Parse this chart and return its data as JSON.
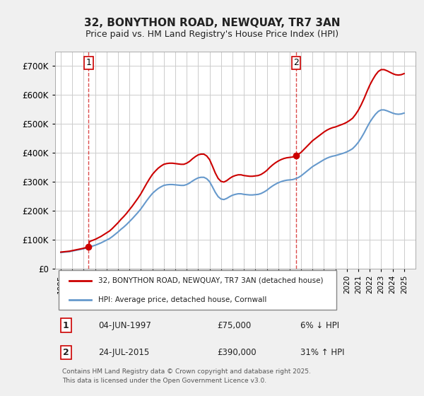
{
  "title_line1": "32, BONYTHON ROAD, NEWQUAY, TR7 3AN",
  "title_line2": "Price paid vs. HM Land Registry's House Price Index (HPI)",
  "ylabel": "",
  "xlabel": "",
  "background_color": "#f0f0f0",
  "plot_bg_color": "#ffffff",
  "grid_color": "#cccccc",
  "line1_color": "#cc0000",
  "line2_color": "#6699cc",
  "marker_color": "#cc0000",
  "dashed_line_color": "#cc0000",
  "ylim": [
    0,
    750000
  ],
  "yticks": [
    0,
    100000,
    200000,
    300000,
    400000,
    500000,
    600000,
    700000
  ],
  "ytick_labels": [
    "£0",
    "£100K",
    "£200K",
    "£300K",
    "£400K",
    "£500K",
    "£600K",
    "£700K"
  ],
  "xlim_start": 1994.5,
  "xlim_end": 2026.0,
  "xtick_years": [
    1995,
    1996,
    1997,
    1998,
    1999,
    2000,
    2001,
    2002,
    2003,
    2004,
    2005,
    2006,
    2007,
    2008,
    2009,
    2010,
    2011,
    2012,
    2013,
    2014,
    2015,
    2016,
    2017,
    2018,
    2019,
    2020,
    2021,
    2022,
    2023,
    2024,
    2025
  ],
  "sale1_x": 1997.43,
  "sale1_y": 75000,
  "sale2_x": 2015.56,
  "sale2_y": 390000,
  "legend_line1": "32, BONYTHON ROAD, NEWQUAY, TR7 3AN (detached house)",
  "legend_line2": "HPI: Average price, detached house, Cornwall",
  "annotation1_label": "1",
  "annotation2_label": "2",
  "table_row1": [
    "1",
    "04-JUN-1997",
    "£75,000",
    "6% ↓ HPI"
  ],
  "table_row2": [
    "2",
    "24-JUL-2015",
    "£390,000",
    "31% ↑ HPI"
  ],
  "footer": "Contains HM Land Registry data © Crown copyright and database right 2025.\nThis data is licensed under the Open Government Licence v3.0.",
  "hpi_data_x": [
    1995,
    1995.25,
    1995.5,
    1995.75,
    1996,
    1996.25,
    1996.5,
    1996.75,
    1997,
    1997.25,
    1997.5,
    1997.75,
    1998,
    1998.25,
    1998.5,
    1998.75,
    1999,
    1999.25,
    1999.5,
    1999.75,
    2000,
    2000.25,
    2000.5,
    2000.75,
    2001,
    2001.25,
    2001.5,
    2001.75,
    2002,
    2002.25,
    2002.5,
    2002.75,
    2003,
    2003.25,
    2003.5,
    2003.75,
    2004,
    2004.25,
    2004.5,
    2004.75,
    2005,
    2005.25,
    2005.5,
    2005.75,
    2006,
    2006.25,
    2006.5,
    2006.75,
    2007,
    2007.25,
    2007.5,
    2007.75,
    2008,
    2008.25,
    2008.5,
    2008.75,
    2009,
    2009.25,
    2009.5,
    2009.75,
    2010,
    2010.25,
    2010.5,
    2010.75,
    2011,
    2011.25,
    2011.5,
    2011.75,
    2012,
    2012.25,
    2012.5,
    2012.75,
    2013,
    2013.25,
    2013.5,
    2013.75,
    2014,
    2014.25,
    2014.5,
    2014.75,
    2015,
    2015.25,
    2015.5,
    2015.75,
    2016,
    2016.25,
    2016.5,
    2016.75,
    2017,
    2017.25,
    2017.5,
    2017.75,
    2018,
    2018.25,
    2018.5,
    2018.75,
    2019,
    2019.25,
    2019.5,
    2019.75,
    2020,
    2020.25,
    2020.5,
    2020.75,
    2021,
    2021.25,
    2021.5,
    2021.75,
    2022,
    2022.25,
    2022.5,
    2022.75,
    2023,
    2023.25,
    2023.5,
    2023.75,
    2024,
    2024.25,
    2024.5,
    2024.75,
    2025
  ],
  "hpi_data_y": [
    55000,
    56000,
    57000,
    58000,
    60000,
    62000,
    64000,
    66000,
    68000,
    71000,
    74000,
    77000,
    80000,
    84000,
    88000,
    93000,
    98000,
    103000,
    110000,
    118000,
    126000,
    135000,
    143000,
    152000,
    162000,
    172000,
    183000,
    194000,
    206000,
    220000,
    234000,
    247000,
    259000,
    268000,
    276000,
    282000,
    287000,
    289000,
    290000,
    290000,
    289000,
    288000,
    287000,
    287000,
    290000,
    295000,
    302000,
    308000,
    313000,
    315000,
    315000,
    310000,
    300000,
    282000,
    263000,
    248000,
    240000,
    238000,
    242000,
    248000,
    253000,
    256000,
    258000,
    258000,
    256000,
    255000,
    254000,
    254000,
    255000,
    256000,
    259000,
    264000,
    270000,
    278000,
    285000,
    291000,
    296000,
    300000,
    303000,
    305000,
    306000,
    307000,
    310000,
    314000,
    320000,
    328000,
    336000,
    344000,
    352000,
    358000,
    364000,
    370000,
    376000,
    381000,
    385000,
    388000,
    390000,
    393000,
    396000,
    399000,
    403000,
    408000,
    414000,
    424000,
    436000,
    451000,
    468000,
    487000,
    505000,
    520000,
    533000,
    543000,
    548000,
    548000,
    545000,
    541000,
    537000,
    534000,
    533000,
    534000,
    537000
  ],
  "hpi_line_data_x": [
    1995,
    1995.25,
    1995.5,
    1995.75,
    1996,
    1996.25,
    1996.5,
    1996.75,
    1997,
    1997.25,
    1997.5,
    1997.75,
    1998,
    1998.25,
    1998.5,
    1998.75,
    1999,
    1999.25,
    1999.5,
    1999.75,
    2000,
    2000.25,
    2000.5,
    2000.75,
    2001,
    2001.25,
    2001.5,
    2001.75,
    2002,
    2002.25,
    2002.5,
    2002.75,
    2003,
    2003.25,
    2003.5,
    2003.75,
    2004,
    2004.25,
    2004.5,
    2004.75,
    2005,
    2005.25,
    2005.5,
    2005.75,
    2006,
    2006.25,
    2006.5,
    2006.75,
    2007,
    2007.25,
    2007.5,
    2007.75,
    2008,
    2008.25,
    2008.5,
    2008.75,
    2009,
    2009.25,
    2009.5,
    2009.75,
    2010,
    2010.25,
    2010.5,
    2010.75,
    2011,
    2011.25,
    2011.5,
    2011.75,
    2012,
    2012.25,
    2012.5,
    2012.75,
    2013,
    2013.25,
    2013.5,
    2013.75,
    2014,
    2014.25,
    2014.5,
    2014.75,
    2015,
    2015.25,
    2015.5,
    2015.75,
    2016,
    2016.25,
    2016.5,
    2016.75,
    2017,
    2017.25,
    2017.5,
    2017.75,
    2018,
    2018.25,
    2018.5,
    2018.75,
    2019,
    2019.25,
    2019.5,
    2019.75,
    2020,
    2020.25,
    2020.5,
    2020.75,
    2021,
    2021.25,
    2021.5,
    2021.75,
    2022,
    2022.25,
    2022.5,
    2022.75,
    2023,
    2023.25,
    2023.5,
    2023.75,
    2024,
    2024.25,
    2024.5,
    2024.75,
    2025
  ],
  "price_line_data_x": [
    1997.43,
    2015.56
  ],
  "price_line_data_y": [
    75000,
    390000
  ]
}
